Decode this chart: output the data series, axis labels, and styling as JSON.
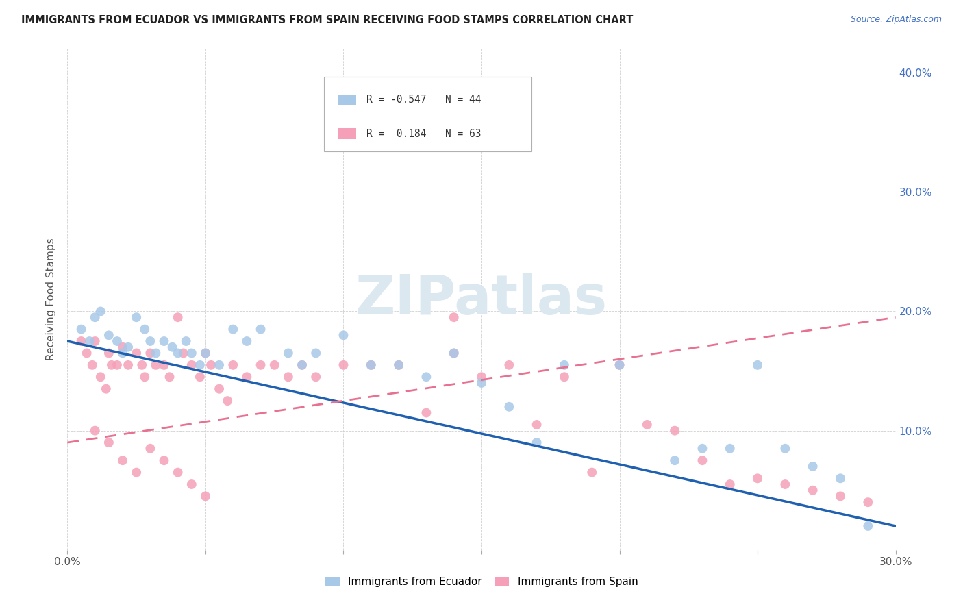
{
  "title": "IMMIGRANTS FROM ECUADOR VS IMMIGRANTS FROM SPAIN RECEIVING FOOD STAMPS CORRELATION CHART",
  "source": "Source: ZipAtlas.com",
  "ylabel": "Receiving Food Stamps",
  "xlim": [
    0.0,
    0.3
  ],
  "ylim": [
    0.0,
    0.42
  ],
  "ecuador_R": -0.547,
  "ecuador_N": 44,
  "spain_R": 0.184,
  "spain_N": 63,
  "ecuador_color": "#a8c8e8",
  "spain_color": "#f5a0b8",
  "ecuador_line_color": "#2060b0",
  "spain_line_color": "#e87090",
  "background_color": "#ffffff",
  "grid_color": "#d0d0d0",
  "watermark_text": "ZIPatlas",
  "watermark_color": "#dce8f0",
  "ecuador_x": [
    0.005,
    0.008,
    0.01,
    0.012,
    0.015,
    0.018,
    0.02,
    0.022,
    0.025,
    0.028,
    0.03,
    0.032,
    0.035,
    0.038,
    0.04,
    0.043,
    0.045,
    0.048,
    0.05,
    0.055,
    0.06,
    0.065,
    0.07,
    0.08,
    0.085,
    0.09,
    0.1,
    0.11,
    0.12,
    0.13,
    0.14,
    0.15,
    0.16,
    0.17,
    0.18,
    0.2,
    0.22,
    0.23,
    0.24,
    0.25,
    0.26,
    0.27,
    0.28,
    0.29
  ],
  "ecuador_y": [
    0.185,
    0.175,
    0.195,
    0.2,
    0.18,
    0.175,
    0.165,
    0.17,
    0.195,
    0.185,
    0.175,
    0.165,
    0.175,
    0.17,
    0.165,
    0.175,
    0.165,
    0.155,
    0.165,
    0.155,
    0.185,
    0.175,
    0.185,
    0.165,
    0.155,
    0.165,
    0.18,
    0.155,
    0.155,
    0.145,
    0.165,
    0.14,
    0.12,
    0.09,
    0.155,
    0.155,
    0.075,
    0.085,
    0.085,
    0.155,
    0.085,
    0.07,
    0.06,
    0.02
  ],
  "spain_x": [
    0.005,
    0.007,
    0.009,
    0.01,
    0.012,
    0.014,
    0.015,
    0.016,
    0.018,
    0.02,
    0.022,
    0.025,
    0.027,
    0.028,
    0.03,
    0.032,
    0.035,
    0.037,
    0.04,
    0.042,
    0.045,
    0.048,
    0.05,
    0.052,
    0.055,
    0.058,
    0.06,
    0.065,
    0.07,
    0.075,
    0.08,
    0.085,
    0.09,
    0.1,
    0.11,
    0.12,
    0.13,
    0.14,
    0.15,
    0.16,
    0.17,
    0.18,
    0.19,
    0.2,
    0.21,
    0.22,
    0.23,
    0.24,
    0.25,
    0.26,
    0.27,
    0.28,
    0.29,
    0.01,
    0.015,
    0.02,
    0.025,
    0.03,
    0.035,
    0.04,
    0.045,
    0.05,
    0.14
  ],
  "spain_y": [
    0.175,
    0.165,
    0.155,
    0.175,
    0.145,
    0.135,
    0.165,
    0.155,
    0.155,
    0.17,
    0.155,
    0.165,
    0.155,
    0.145,
    0.165,
    0.155,
    0.155,
    0.145,
    0.195,
    0.165,
    0.155,
    0.145,
    0.165,
    0.155,
    0.135,
    0.125,
    0.155,
    0.145,
    0.155,
    0.155,
    0.145,
    0.155,
    0.145,
    0.155,
    0.155,
    0.155,
    0.115,
    0.165,
    0.145,
    0.155,
    0.105,
    0.145,
    0.065,
    0.155,
    0.105,
    0.1,
    0.075,
    0.055,
    0.06,
    0.055,
    0.05,
    0.045,
    0.04,
    0.1,
    0.09,
    0.075,
    0.065,
    0.085,
    0.075,
    0.065,
    0.055,
    0.045,
    0.195
  ],
  "ec_line_x0": 0.0,
  "ec_line_x1": 0.3,
  "ec_line_y0": 0.175,
  "ec_line_y1": 0.02,
  "sp_line_x0": 0.0,
  "sp_line_x1": 0.3,
  "sp_line_y0": 0.09,
  "sp_line_y1": 0.195,
  "legend_R_ec": "R = -0.547",
  "legend_N_ec": "N = 44",
  "legend_R_sp": "R =  0.184",
  "legend_N_sp": "N = 63",
  "label_ecuador": "Immigrants from Ecuador",
  "label_spain": "Immigrants from Spain"
}
